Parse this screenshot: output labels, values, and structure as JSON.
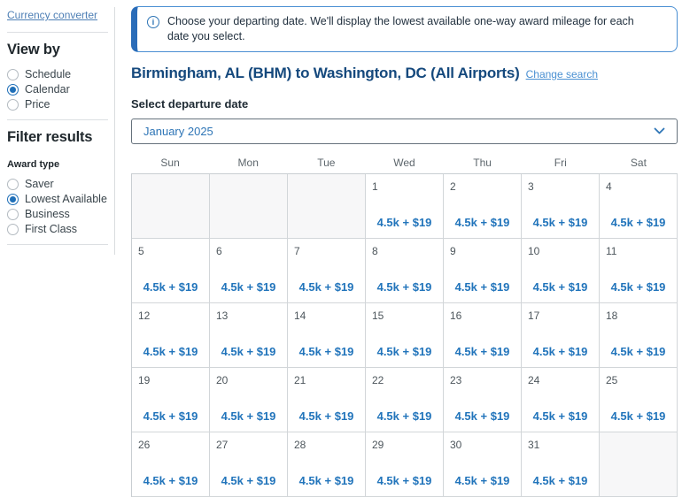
{
  "sidebar": {
    "currency_link": "Currency converter",
    "view_by": {
      "title": "View by",
      "options": [
        {
          "label": "Schedule",
          "selected": false
        },
        {
          "label": "Calendar",
          "selected": true
        },
        {
          "label": "Price",
          "selected": false
        }
      ]
    },
    "filter": {
      "title": "Filter results",
      "group_label": "Award type",
      "options": [
        {
          "label": "Saver",
          "selected": false
        },
        {
          "label": "Lowest Available",
          "selected": true
        },
        {
          "label": "Business",
          "selected": false
        },
        {
          "label": "First Class",
          "selected": false
        }
      ]
    }
  },
  "banner": {
    "text": "Choose your departing date. We'll display the lowest available one-way award mileage for each date you select."
  },
  "header": {
    "title": "Birmingham, AL (BHM) to Washington, DC (All Airports)",
    "change_search": "Change search"
  },
  "departure": {
    "label": "Select departure date",
    "selected_month": "January 2025"
  },
  "calendar": {
    "day_headers": [
      "Sun",
      "Mon",
      "Tue",
      "Wed",
      "Thu",
      "Fri",
      "Sat"
    ],
    "weeks": [
      [
        null,
        null,
        null,
        {
          "day": "1",
          "price": "4.5k + $19"
        },
        {
          "day": "2",
          "price": "4.5k + $19"
        },
        {
          "day": "3",
          "price": "4.5k + $19"
        },
        {
          "day": "4",
          "price": "4.5k + $19"
        }
      ],
      [
        {
          "day": "5",
          "price": "4.5k + $19"
        },
        {
          "day": "6",
          "price": "4.5k + $19"
        },
        {
          "day": "7",
          "price": "4.5k + $19"
        },
        {
          "day": "8",
          "price": "4.5k + $19"
        },
        {
          "day": "9",
          "price": "4.5k + $19"
        },
        {
          "day": "10",
          "price": "4.5k + $19"
        },
        {
          "day": "11",
          "price": "4.5k + $19"
        }
      ],
      [
        {
          "day": "12",
          "price": "4.5k + $19"
        },
        {
          "day": "13",
          "price": "4.5k + $19"
        },
        {
          "day": "14",
          "price": "4.5k + $19"
        },
        {
          "day": "15",
          "price": "4.5k + $19"
        },
        {
          "day": "16",
          "price": "4.5k + $19"
        },
        {
          "day": "17",
          "price": "4.5k + $19"
        },
        {
          "day": "18",
          "price": "4.5k + $19"
        }
      ],
      [
        {
          "day": "19",
          "price": "4.5k + $19"
        },
        {
          "day": "20",
          "price": "4.5k + $19"
        },
        {
          "day": "21",
          "price": "4.5k + $19"
        },
        {
          "day": "22",
          "price": "4.5k + $19"
        },
        {
          "day": "23",
          "price": "4.5k + $19"
        },
        {
          "day": "24",
          "price": "4.5k + $19"
        },
        {
          "day": "25",
          "price": "4.5k + $19"
        }
      ],
      [
        {
          "day": "26",
          "price": "4.5k + $19"
        },
        {
          "day": "27",
          "price": "4.5k + $19"
        },
        {
          "day": "28",
          "price": "4.5k + $19"
        },
        {
          "day": "29",
          "price": "4.5k + $19"
        },
        {
          "day": "30",
          "price": "4.5k + $19"
        },
        {
          "day": "31",
          "price": "4.5k + $19"
        },
        null
      ]
    ]
  },
  "colors": {
    "heading_navy": "#15497d",
    "price_blue": "#2174bb",
    "link_blue": "#4a90d2",
    "banner_border": "#4a8fd3",
    "banner_accent": "#2a6cb8",
    "radio_selected": "#1f6fb8",
    "empty_cell_bg": "#f7f7f8"
  }
}
